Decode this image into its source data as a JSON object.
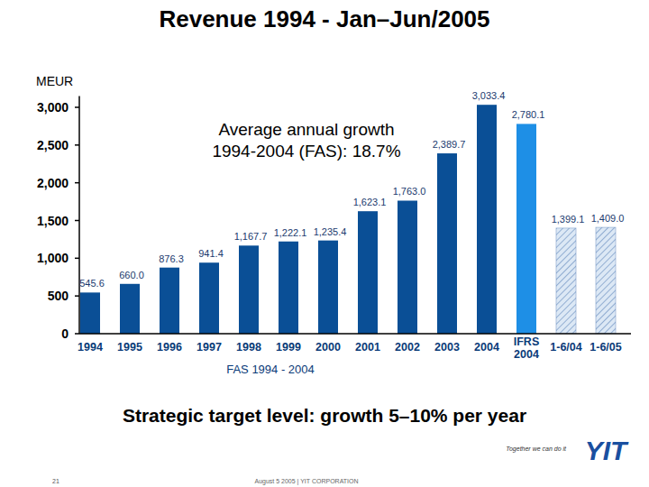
{
  "chart_data": {
    "type": "bar",
    "title": "Revenue 1994 - Jan–Jun/2005",
    "y_label": "MEUR",
    "categories": [
      "1994",
      "1995",
      "1996",
      "1997",
      "1998",
      "1999",
      "2000",
      "2001",
      "2002",
      "2003",
      "2004",
      "IFRS 2004",
      "1-6/04",
      "1-6/05"
    ],
    "values": [
      545.6,
      660.0,
      876.3,
      941.4,
      1167.7,
      1222.1,
      1235.4,
      1623.1,
      1763.0,
      2389.7,
      3033.4,
      2780.1,
      1399.1,
      1409.0
    ],
    "value_labels": [
      "545.6",
      "660.0",
      "876.3",
      "941.4",
      "1,167.7",
      "1,222.1",
      "1,235.4",
      "1,623.1",
      "1,763.0",
      "2,389.7",
      "3,033.4",
      "2,780.1",
      "1,399.1",
      "1,409.0"
    ],
    "colors": [
      "#0a4f96",
      "#0a4f96",
      "#0a4f96",
      "#0a4f96",
      "#0a4f96",
      "#0a4f96",
      "#0a4f96",
      "#0a4f96",
      "#0a4f96",
      "#0a4f96",
      "#0a4f96",
      "#1e8fe6",
      "#dce8f5",
      "#dce8f5"
    ],
    "ylim": [
      0,
      3150
    ],
    "yticks": [
      0,
      500,
      {
        "value": 1000,
        "label": "1,000"
      },
      {
        "value": 1500,
        "label": "1,500"
      },
      {
        "value": 2000,
        "label": "2,000"
      },
      {
        "value": 2500,
        "label": "2,500"
      },
      {
        "value": 3000,
        "label": "3,000"
      }
    ],
    "data_labels": true,
    "grid": false,
    "annotations": [
      "Average annual growth",
      "1994-2004 (FAS): 18.7%"
    ],
    "group_label": "FAS 1994 - 2004",
    "subtitle": "Strategic target level: growth 5–10% per year"
  },
  "footer": {
    "slogan": "Together we can do it",
    "logo": "YIT",
    "page": "21",
    "date_company": "August 5 2005 | YIT CORPORATION"
  }
}
